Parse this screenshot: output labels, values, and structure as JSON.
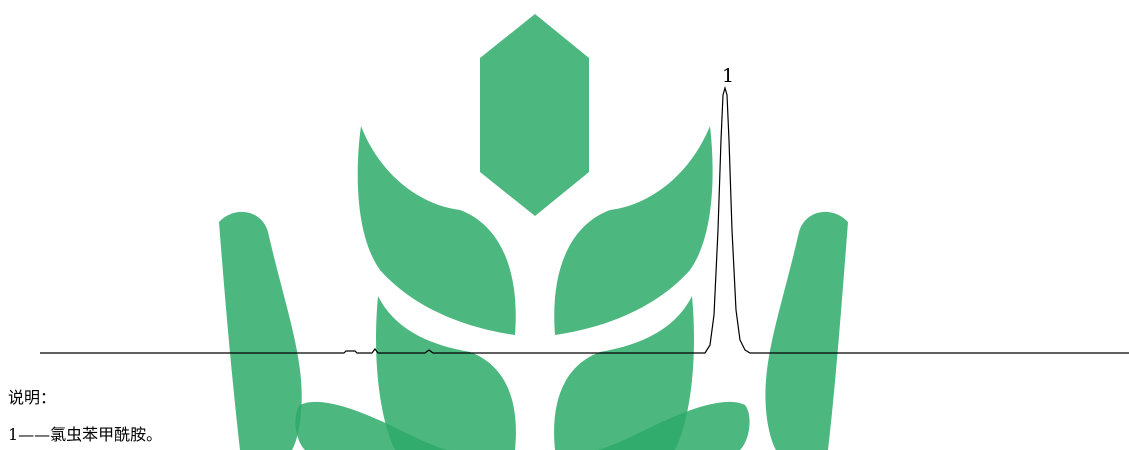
{
  "chromatogram": {
    "peaks": [
      {
        "label": "1"
      }
    ],
    "trace_color": "#000000"
  },
  "watermark": {
    "color": "#2eaa6a",
    "description_icon": "wheat-logo-icon"
  },
  "legend": {
    "heading": "说明：",
    "items": [
      {
        "text": "1——氯虫苯甲酰胺。"
      }
    ]
  }
}
